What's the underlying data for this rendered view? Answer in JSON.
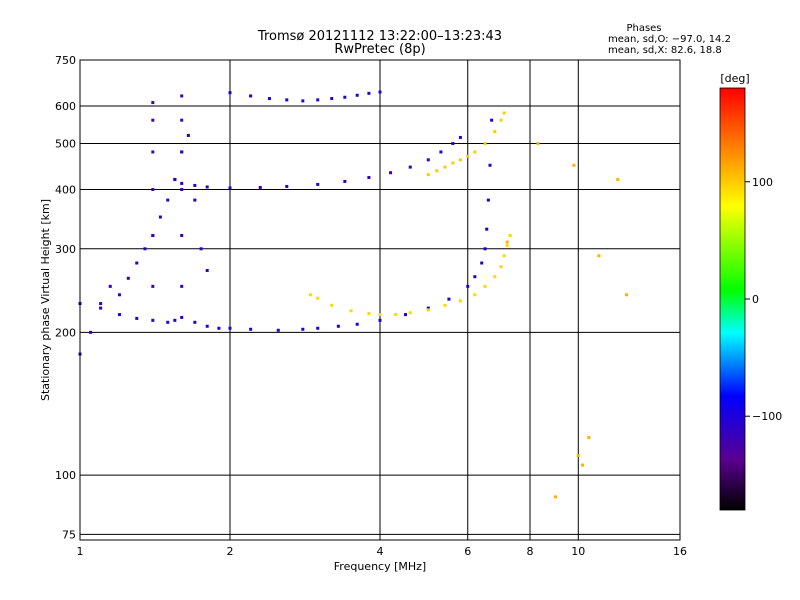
{
  "header": {
    "title_line1": "Tromsø 20121112 13:22:00–13:23:43",
    "title_line2": "RwPretec (8p)",
    "stats_title": "Phases",
    "stats_o": "mean, sd,O: −97.0, 14.2",
    "stats_x": "mean, sd,X: 82.6, 18.8"
  },
  "chart_data": {
    "type": "scatter",
    "xlabel": "Frequency [MHz]",
    "ylabel": "Stationary phase Virtual Height [km]",
    "x_scale": "log",
    "y_scale": "log",
    "xlim": [
      1,
      16
    ],
    "ylim": [
      73,
      750
    ],
    "x_ticks": [
      1,
      2,
      4,
      6,
      8,
      10,
      16
    ],
    "x_tick_labels": [
      "1",
      "2",
      "4",
      "6",
      "8",
      "10",
      "16"
    ],
    "y_ticks": [
      75,
      100,
      200,
      300,
      400,
      500,
      600,
      750
    ],
    "y_tick_labels": [
      "75",
      "100",
      "200",
      "300",
      "400",
      "500",
      "600",
      "750"
    ],
    "grid": true,
    "colorbar": {
      "label": "[deg]",
      "range": [
        -180,
        180
      ],
      "ticks": [
        100,
        0,
        -100
      ],
      "tick_labels": [
        "100",
        "0",
        "−100"
      ]
    },
    "series": [
      {
        "kind": "O-mode E-layer trace",
        "phase": -100,
        "x": [
          1.0,
          1.1,
          1.2,
          1.3,
          1.4,
          1.5,
          1.55,
          1.6,
          1.7,
          1.8,
          1.9,
          2.0,
          2.2,
          2.5,
          2.8,
          3.0,
          3.3,
          3.6,
          4.0,
          4.5,
          5.0,
          5.5,
          6.0,
          6.2,
          6.4,
          6.5,
          6.55,
          6.6,
          6.65,
          6.7
        ],
        "y": [
          230,
          225,
          218,
          214,
          212,
          210,
          212,
          215,
          210,
          206,
          204,
          204,
          203,
          202,
          203,
          204,
          206,
          208,
          212,
          218,
          225,
          235,
          250,
          262,
          280,
          300,
          330,
          380,
          450,
          560
        ]
      },
      {
        "kind": "O-mode F-layer trace",
        "phase": -110,
        "x": [
          1.55,
          1.6,
          1.7,
          1.8,
          2.0,
          2.3,
          2.6,
          3.0,
          3.4,
          3.8,
          4.2,
          4.6,
          5.0,
          5.3,
          5.6,
          5.8
        ],
        "y": [
          420,
          412,
          408,
          405,
          403,
          404,
          406,
          410,
          416,
          424,
          434,
          446,
          462,
          480,
          500,
          515
        ]
      },
      {
        "kind": "O-mode upper trace",
        "phase": -105,
        "x": [
          2.0,
          2.2,
          2.4,
          2.6,
          2.8,
          3.0,
          3.2,
          3.4,
          3.6,
          3.8,
          4.0
        ],
        "y": [
          640,
          630,
          622,
          618,
          615,
          618,
          622,
          626,
          632,
          638,
          642
        ]
      },
      {
        "kind": "X-mode E-layer trace",
        "phase": 95,
        "x": [
          2.9,
          3.0,
          3.2,
          3.5,
          3.8,
          4.0,
          4.3,
          4.6,
          5.0,
          5.4,
          5.8,
          6.2,
          6.5,
          6.8,
          7.0,
          7.1,
          7.2,
          7.3
        ],
        "y": [
          240,
          236,
          228,
          222,
          219,
          218,
          218,
          220,
          223,
          228,
          233,
          240,
          250,
          262,
          275,
          290,
          305,
          320
        ]
      },
      {
        "kind": "X-mode F-layer trace",
        "phase": 100,
        "x": [
          5.0,
          5.2,
          5.4,
          5.6,
          5.8,
          6.0,
          6.2,
          6.5,
          6.8,
          7.0,
          7.1
        ],
        "y": [
          430,
          438,
          446,
          455,
          462,
          470,
          480,
          500,
          530,
          560,
          580
        ]
      },
      {
        "kind": "low-frequency spread echoes",
        "phase": -110,
        "x": [
          1.0,
          1.05,
          1.1,
          1.15,
          1.2,
          1.25,
          1.3,
          1.35,
          1.4,
          1.45,
          1.5,
          1.55,
          1.6,
          1.65,
          1.7,
          1.75,
          1.8
        ],
        "y": [
          180,
          200,
          230,
          250,
          240,
          260,
          280,
          300,
          320,
          350,
          380,
          420,
          480,
          520,
          380,
          300,
          270
        ]
      },
      {
        "kind": "vertical streak at 1.4 MHz",
        "phase": -120,
        "x": [
          1.4,
          1.4,
          1.4,
          1.4,
          1.4,
          1.4
        ],
        "y": [
          250,
          320,
          400,
          480,
          560,
          610
        ]
      },
      {
        "kind": "vertical streak at 1.6 MHz",
        "phase": -115,
        "x": [
          1.6,
          1.6,
          1.6,
          1.6,
          1.6,
          1.6
        ],
        "y": [
          250,
          320,
          400,
          480,
          560,
          630
        ]
      },
      {
        "kind": "scattered high-frequency echoes",
        "phase": 110,
        "x": [
          7.2,
          8.3,
          9.0,
          9.8,
          10.0,
          10.2,
          10.5,
          11.0,
          12.0,
          12.5
        ],
        "y": [
          310,
          500,
          90,
          450,
          110,
          105,
          120,
          290,
          420,
          240
        ]
      }
    ]
  }
}
